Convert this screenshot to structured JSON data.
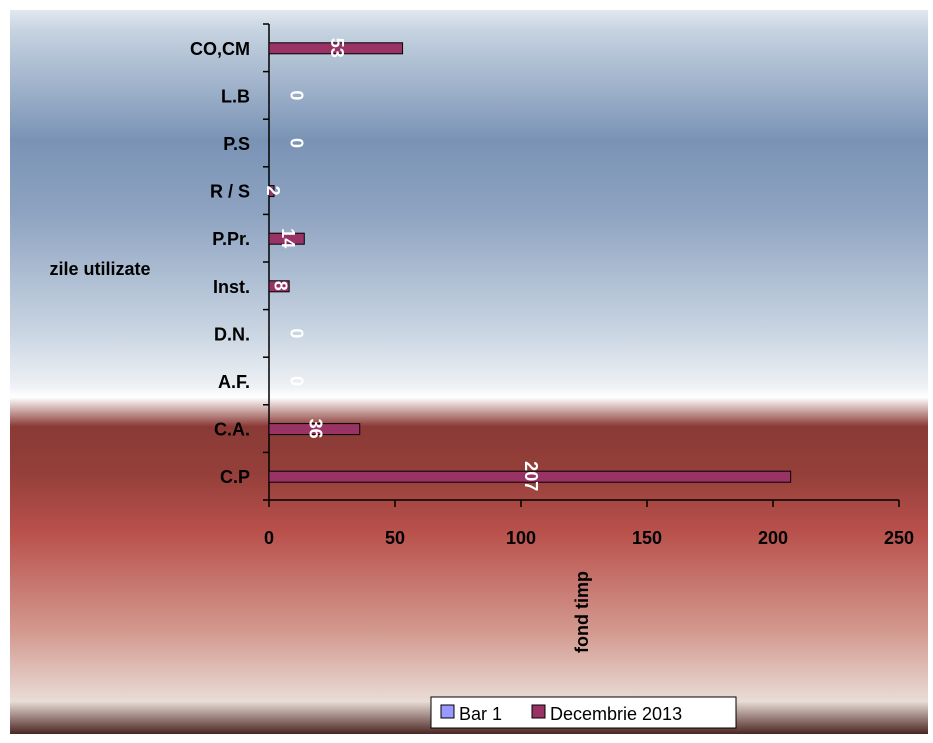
{
  "chart_data": {
    "type": "bar",
    "orientation": "horizontal",
    "categories": [
      "C.P",
      "C.A.",
      "A.F.",
      "D.N.",
      "Inst.",
      "P.Pr.",
      "R / S",
      "P.S",
      "L.B",
      "CO,CM"
    ],
    "series": [
      {
        "name": "Bar 1",
        "values": [
          0,
          0,
          0,
          0,
          0,
          0,
          0,
          0,
          0,
          0
        ],
        "color": "#9999ff"
      },
      {
        "name": "Decembrie 2013",
        "values": [
          207,
          36,
          0,
          0,
          8,
          14,
          2,
          0,
          0,
          53
        ],
        "color": "#993366"
      }
    ],
    "data_labels": [
      "207",
      "36",
      "0",
      "0",
      "8",
      "14",
      "2",
      "0",
      "0",
      "53"
    ],
    "xlabel": "fond timp",
    "ylabel": "zile utilizate",
    "xlim": [
      0,
      250
    ],
    "xticks": [
      "0",
      "50",
      "100",
      "150",
      "200",
      "250"
    ],
    "grid": false,
    "legend_position": "bottom"
  },
  "colors": {
    "background_top": "#7a93b5",
    "background_mid": "#ffffff",
    "background_dark": "#8a3a36",
    "background_bottom": "#e9dcd6",
    "bar_fill": "#993366",
    "bar_1_fill": "#9999ff"
  }
}
